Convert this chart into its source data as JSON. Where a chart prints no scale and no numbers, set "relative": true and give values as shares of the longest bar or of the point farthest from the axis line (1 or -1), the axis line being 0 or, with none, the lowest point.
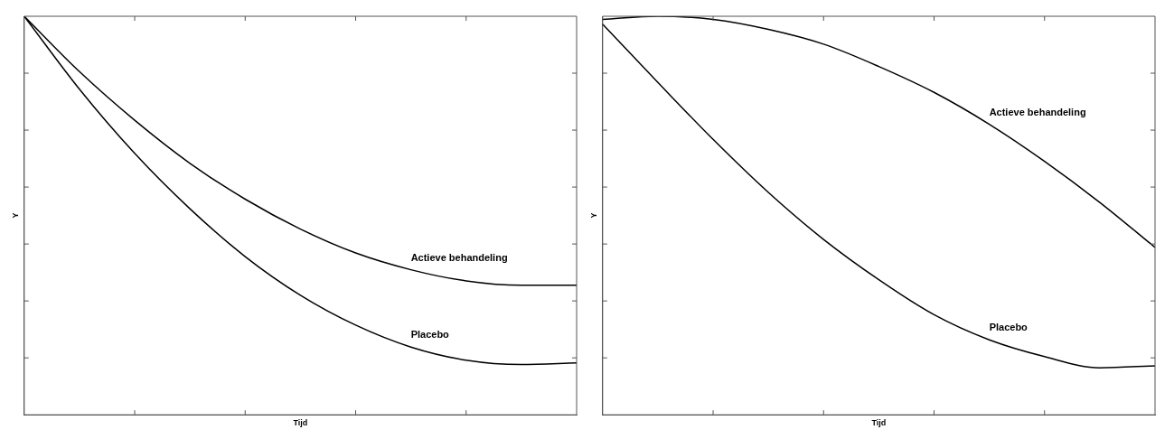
{
  "chart_data": [
    {
      "type": "line",
      "relative": true,
      "xlabel": "Tijd",
      "ylabel": "Y",
      "tick_labels": false,
      "grid": false,
      "legend": false,
      "marker": "none",
      "categories": [
        null,
        null,
        null,
        null,
        null,
        null,
        null,
        null,
        null,
        null,
        null
      ],
      "series": [
        {
          "name": "Actieve behandeling",
          "color": "#000000",
          "values": [
            1.0,
            0.861,
            0.739,
            0.631,
            0.541,
            0.466,
            0.406,
            0.364,
            0.336,
            0.325,
            0.325
          ]
        },
        {
          "name": "Placebo",
          "color": "#000000",
          "values": [
            1.0,
            0.817,
            0.656,
            0.517,
            0.397,
            0.3,
            0.225,
            0.17,
            0.137,
            0.126,
            0.13
          ]
        }
      ]
    },
    {
      "type": "line",
      "relative": true,
      "xlabel": "Tijd",
      "ylabel": "Y",
      "tick_labels": false,
      "grid": false,
      "legend": false,
      "marker": "none",
      "categories": [
        null,
        null,
        null,
        null,
        null,
        null,
        null,
        null,
        null,
        null,
        null
      ],
      "series": [
        {
          "name": "Actieve behandeling",
          "color": "#000000",
          "values": [
            0.992,
            1.0,
            0.992,
            0.967,
            0.93,
            0.874,
            0.809,
            0.729,
            0.636,
            0.533,
            0.42
          ]
        },
        {
          "name": "Placebo",
          "color": "#000000",
          "values": [
            0.98,
            0.834,
            0.691,
            0.558,
            0.44,
            0.339,
            0.251,
            0.188,
            0.146,
            0.118,
            0.123
          ]
        }
      ]
    }
  ]
}
